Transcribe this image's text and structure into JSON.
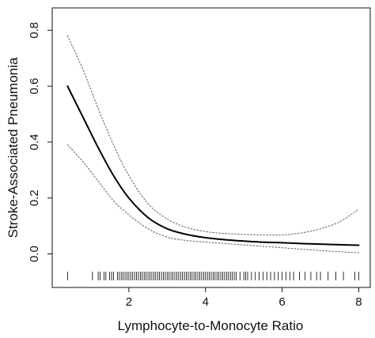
{
  "chart_data": {
    "type": "line",
    "title": "",
    "xlabel": "Lymphocyte-to-Monocyte Ratio",
    "ylabel": "Stroke-Associated Pneumonia",
    "xlim": [
      0.0,
      8.3
    ],
    "ylim": [
      -0.12,
      0.88
    ],
    "x_ticks": [
      2,
      4,
      6,
      8
    ],
    "x_tick_labels": [
      "2",
      "4",
      "6",
      "8"
    ],
    "y_ticks": [
      0.0,
      0.2,
      0.4,
      0.6,
      0.8
    ],
    "y_tick_labels": [
      "0.0",
      "0.2",
      "0.4",
      "0.6",
      "0.8"
    ],
    "grid": false,
    "legend": "none",
    "series": [
      {
        "style": "solid",
        "x": [
          0.4,
          0.8,
          1.2,
          1.6,
          2.0,
          2.5,
          3.0,
          3.5,
          4.0,
          4.5,
          5.0,
          5.5,
          6.0,
          6.5,
          7.0,
          7.5,
          8.0
        ],
        "y": [
          0.6,
          0.49,
          0.38,
          0.28,
          0.2,
          0.13,
          0.09,
          0.07,
          0.058,
          0.051,
          0.046,
          0.042,
          0.04,
          0.037,
          0.035,
          0.033,
          0.031
        ]
      },
      {
        "style": "dotted",
        "x": [
          0.4,
          0.8,
          1.2,
          1.6,
          2.0,
          2.5,
          3.0,
          3.5,
          4.0,
          4.5,
          5.0,
          5.5,
          6.0,
          6.5,
          7.0,
          7.5,
          8.0
        ],
        "y": [
          0.78,
          0.66,
          0.52,
          0.39,
          0.28,
          0.18,
          0.125,
          0.095,
          0.08,
          0.073,
          0.07,
          0.068,
          0.068,
          0.075,
          0.09,
          0.115,
          0.16
        ]
      },
      {
        "style": "dotted",
        "x": [
          0.4,
          0.8,
          1.2,
          1.6,
          2.0,
          2.5,
          3.0,
          3.5,
          4.0,
          4.5,
          5.0,
          5.5,
          6.0,
          6.5,
          7.0,
          7.5,
          8.0
        ],
        "y": [
          0.39,
          0.33,
          0.26,
          0.19,
          0.14,
          0.09,
          0.06,
          0.048,
          0.042,
          0.037,
          0.032,
          0.027,
          0.022,
          0.017,
          0.012,
          0.008,
          0.004
        ]
      }
    ],
    "rug_x": [
      0.4,
      1.05,
      1.2,
      1.25,
      1.35,
      1.4,
      1.5,
      1.55,
      1.6,
      1.7,
      1.75,
      1.8,
      1.85,
      1.9,
      1.95,
      2.0,
      2.05,
      2.1,
      2.15,
      2.2,
      2.25,
      2.3,
      2.35,
      2.4,
      2.45,
      2.5,
      2.55,
      2.6,
      2.65,
      2.7,
      2.75,
      2.8,
      2.85,
      2.9,
      2.95,
      3.0,
      3.05,
      3.1,
      3.15,
      3.2,
      3.25,
      3.3,
      3.35,
      3.4,
      3.45,
      3.5,
      3.55,
      3.6,
      3.65,
      3.7,
      3.75,
      3.8,
      3.85,
      3.9,
      3.95,
      4.0,
      4.05,
      4.1,
      4.15,
      4.2,
      4.25,
      4.3,
      4.35,
      4.4,
      4.45,
      4.5,
      4.55,
      4.6,
      4.65,
      4.7,
      4.75,
      4.8,
      4.9,
      5.0,
      5.05,
      5.1,
      5.2,
      5.3,
      5.4,
      5.5,
      5.6,
      5.7,
      5.8,
      5.9,
      6.0,
      6.1,
      6.2,
      6.3,
      6.45,
      6.6,
      6.75,
      6.9,
      7.0,
      7.2,
      7.4,
      7.6,
      7.9,
      8.0
    ]
  }
}
